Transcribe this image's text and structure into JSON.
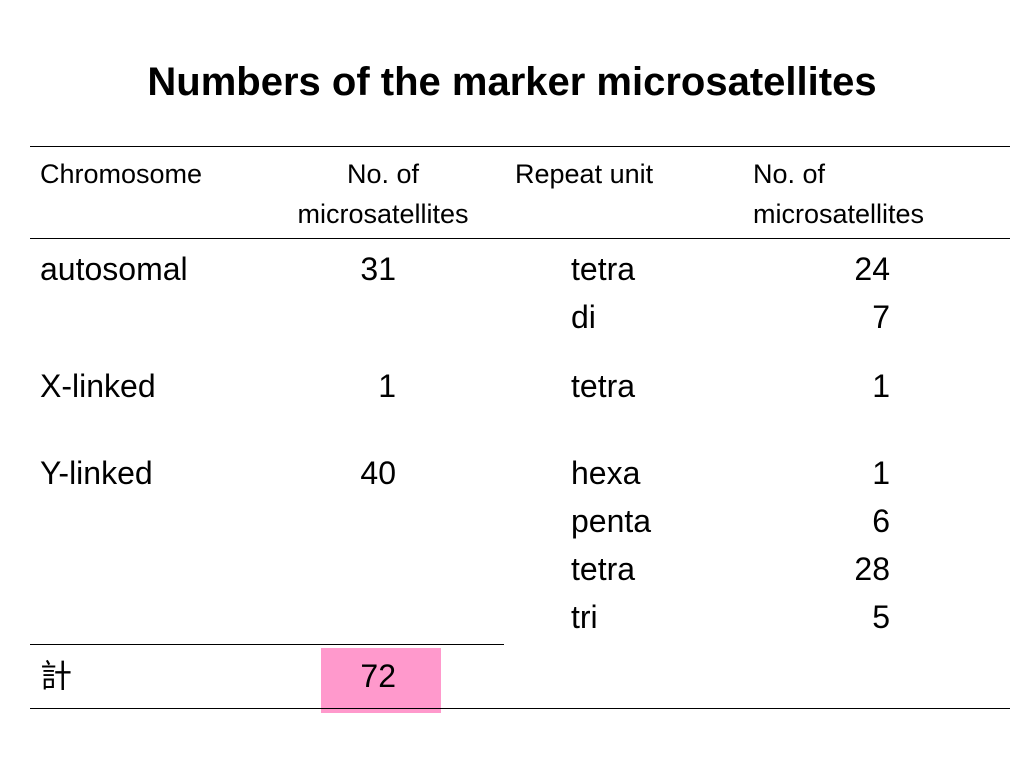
{
  "title": "Numbers of the marker microsatellites",
  "table": {
    "headers": {
      "chromosome": "Chromosome",
      "no_of_microsatellites_1_line1": "No. of",
      "no_of_microsatellites_1_line2": "microsatellites",
      "repeat_unit": "Repeat unit",
      "no_of_microsatellites_2_line1": "No. of",
      "no_of_microsatellites_2_line2": "microsatellites"
    },
    "rows": [
      {
        "chromosome": "autosomal",
        "count": "31",
        "units": [
          {
            "unit": "tetra",
            "count": "24"
          },
          {
            "unit": "di",
            "count": "7"
          }
        ]
      },
      {
        "chromosome": "X-linked",
        "count": "1",
        "units": [
          {
            "unit": "tetra",
            "count": "1"
          }
        ]
      },
      {
        "chromosome": "Y-linked",
        "count": "40",
        "units": [
          {
            "unit": "hexa",
            "count": "1"
          },
          {
            "unit": "penta",
            "count": "6"
          },
          {
            "unit": "tetra",
            "count": "28"
          },
          {
            "unit": "tri",
            "count": "5"
          }
        ]
      }
    ],
    "total": {
      "label": "計",
      "value": "72",
      "highlight_color": "#ff99cc"
    }
  }
}
